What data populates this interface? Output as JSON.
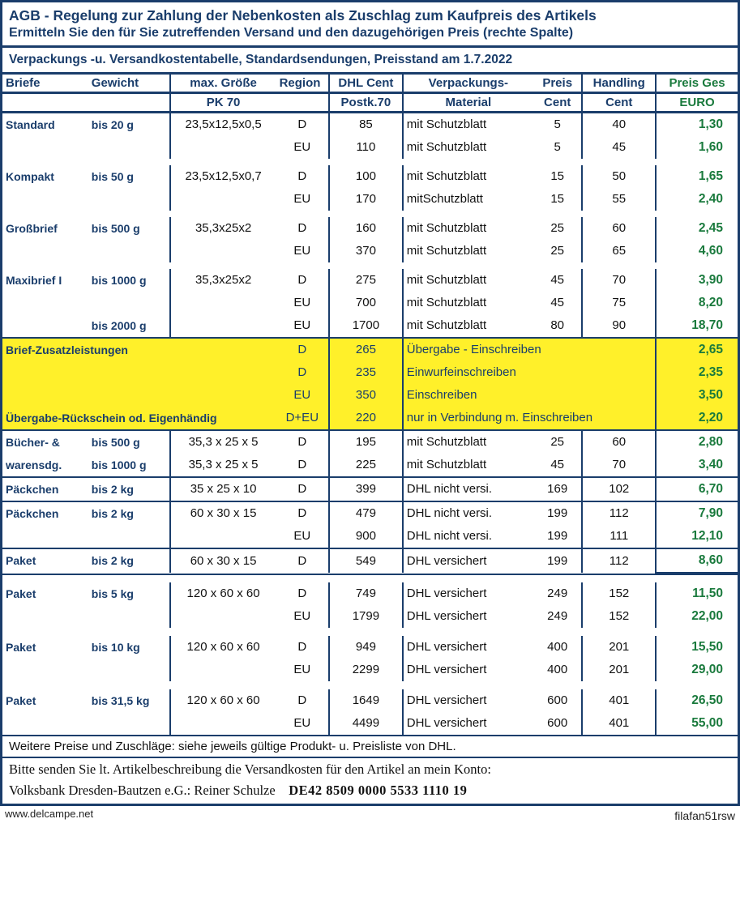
{
  "colors": {
    "frame": "#1a3d6b",
    "heading": "#1a3d6b",
    "price": "#1a7a3d",
    "highlight": "#fff02a",
    "text": "#111111",
    "background": "#ffffff"
  },
  "header": {
    "title": "AGB - Regelung zur Zahlung der Nebenkosten als Zuschlag zum Kaufpreis des Artikels",
    "subtitle": "Ermitteln Sie den für Sie zutreffenden Versand und den dazugehörigen Preis (rechte Spalte)"
  },
  "tableTitle": "Verpackungs -u. Versandkostentabelle, Standardsendungen,   Preisstand am 1.7.2022",
  "columns": {
    "briefe": "Briefe",
    "gewicht": "Gewicht",
    "groesse1": "max. Größe",
    "groesse2": "PK 70",
    "region": "Region",
    "dhl1": "DHL Cent",
    "dhl2": "Postk.70",
    "mat1": "Verpackungs-",
    "mat2": "Material",
    "preis1": "Preis",
    "preis2": "Cent",
    "hand1": "Handling",
    "hand2": "Cent",
    "ges1": "Preis Ges",
    "ges2": "EURO"
  },
  "rows": [
    {
      "cat": "Standard",
      "wt": "bis 20 g",
      "size": "23,5x12,5x0,5",
      "region": "D",
      "dhl": "85",
      "mat": "mit Schutzblatt",
      "preis": "5",
      "hand": "40",
      "ges": "1,30"
    },
    {
      "cat": "",
      "wt": "",
      "size": "",
      "region": "EU",
      "dhl": "110",
      "mat": "mit Schutzblatt",
      "preis": "5",
      "hand": "45",
      "ges": "1,60"
    },
    {
      "cat": "Kompakt",
      "wt": "bis 50 g",
      "size": "23,5x12,5x0,7",
      "region": "D",
      "dhl": "100",
      "mat": "mit Schutzblatt",
      "preis": "15",
      "hand": "50",
      "ges": "1,65"
    },
    {
      "cat": "",
      "wt": "",
      "size": "",
      "region": "EU",
      "dhl": "170",
      "mat": "mitSchutzblatt",
      "preis": "15",
      "hand": "55",
      "ges": "2,40"
    },
    {
      "cat": "Großbrief",
      "wt": "bis 500 g",
      "size": "35,3x25x2",
      "region": "D",
      "dhl": "160",
      "mat": "mit Schutzblatt",
      "preis": "25",
      "hand": "60",
      "ges": "2,45"
    },
    {
      "cat": "",
      "wt": "",
      "size": "",
      "region": "EU",
      "dhl": "370",
      "mat": "mit Schutzblatt",
      "preis": "25",
      "hand": "65",
      "ges": "4,60"
    },
    {
      "cat": "Maxibrief I",
      "wt": "bis 1000 g",
      "size": "35,3x25x2",
      "region": "D",
      "dhl": "275",
      "mat": "mit Schutzblatt",
      "preis": "45",
      "hand": "70",
      "ges": "3,90"
    },
    {
      "cat": "",
      "wt": "",
      "size": "",
      "region": "EU",
      "dhl": "700",
      "mat": "mit Schutzblatt",
      "preis": "45",
      "hand": "75",
      "ges": "8,20"
    },
    {
      "cat": "",
      "wt": "bis 2000 g",
      "size": "",
      "region": "EU",
      "dhl": "1700",
      "mat": "mit Schutzblatt",
      "preis": "80",
      "hand": "90",
      "ges": "18,70"
    }
  ],
  "zusatz": [
    {
      "cat": "Brief-Zusatzleistungen",
      "region": "D",
      "dhl": "265",
      "mat": "Übergabe - Einschreiben",
      "ges": "2,65"
    },
    {
      "cat": "",
      "region": "D",
      "dhl": "235",
      "mat": "Einwurfeinschreiben",
      "ges": "2,35"
    },
    {
      "cat": "",
      "region": "EU",
      "dhl": "350",
      "mat": "   Einschreiben",
      "ges": "3,50"
    },
    {
      "cat": "Übergabe-Rückschein od. Eigenhändig",
      "region": "D+EU",
      "dhl": "220",
      "mat": "nur in Verbindung m. Einschreiben",
      "ges": "2,20"
    }
  ],
  "rows2": [
    {
      "cat": "Bücher- &",
      "wt": "bis 500 g",
      "size": "35,3 x 25 x 5",
      "region": "D",
      "dhl": "195",
      "mat": "mit Schutzblatt",
      "preis": "25",
      "hand": "60",
      "ges": "2,80"
    },
    {
      "cat": "warensdg.",
      "wt": "bis 1000 g",
      "size": "35,3 x 25 x 5",
      "region": "D",
      "dhl": "225",
      "mat": "mit Schutzblatt",
      "preis": "45",
      "hand": "70",
      "ges": "3,40"
    }
  ],
  "paeckchen": [
    {
      "cat": "Päckchen",
      "wt": "bis 2 kg",
      "size": "35 x 25 x 10",
      "region": "D",
      "dhl": "399",
      "mat": "DHL nicht versi.",
      "preis": "169",
      "hand": "102",
      "ges": "6,70"
    }
  ],
  "paeckchen2": [
    {
      "cat": "Päckchen",
      "wt": "bis 2 kg",
      "size": "60 x 30 x 15",
      "region": "D",
      "dhl": "479",
      "mat": "DHL nicht versi.",
      "preis": "199",
      "hand": "112",
      "ges": "7,90"
    },
    {
      "cat": "",
      "wt": "",
      "size": "",
      "region": "EU",
      "dhl": "900",
      "mat": "DHL nicht versi.",
      "preis": "199",
      "hand": "111",
      "ges": "12,10"
    }
  ],
  "paket": [
    {
      "cat": "Paket",
      "wt": "bis 2 kg",
      "size": "60 x 30 x 15",
      "region": "D",
      "dhl": "549",
      "mat": "DHL versichert",
      "preis": "199",
      "hand": "112",
      "ges": "8,60",
      "boxed": true
    },
    {
      "cat": "Paket",
      "wt": "bis 5 kg",
      "size": "120 x 60 x 60",
      "region": "D",
      "dhl": "749",
      "mat": "DHL versichert",
      "preis": "249",
      "hand": "152",
      "ges": "11,50"
    },
    {
      "cat": "",
      "wt": "",
      "size": "",
      "region": "EU",
      "dhl": "1799",
      "mat": "DHL versichert",
      "preis": "249",
      "hand": "152",
      "ges": "22,00"
    },
    {
      "cat": "Paket",
      "wt": "bis 10 kg",
      "size": "120 x 60 x 60",
      "region": "D",
      "dhl": "949",
      "mat": "DHL versichert",
      "preis": "400",
      "hand": "201",
      "ges": "15,50"
    },
    {
      "cat": "",
      "wt": "",
      "size": "",
      "region": "EU",
      "dhl": "2299",
      "mat": "DHL versichert",
      "preis": "400",
      "hand": "201",
      "ges": "29,00"
    },
    {
      "cat": "Paket",
      "wt": "bis 31,5 kg",
      "size": "120 x 60 x 60",
      "region": "D",
      "dhl": "1649",
      "mat": "DHL versichert",
      "preis": "600",
      "hand": "401",
      "ges": "26,50"
    },
    {
      "cat": "",
      "wt": "",
      "size": "",
      "region": "EU",
      "dhl": "4499",
      "mat": "DHL versichert",
      "preis": "600",
      "hand": "401",
      "ges": "55,00"
    }
  ],
  "footnote": "Weitere Preise und Zuschläge: siehe jeweils gültige Produkt- u. Preisliste von DHL.",
  "bank1": "Bitte senden Sie lt. Artikelbeschreibung die Versandkosten für den Artikel an mein Konto:",
  "bank2a": "Volksbank Dresden-Bautzen e.G.: Reiner Schulze",
  "bank2b": "DE42 8509 0000 5533 1110 19",
  "watermark": "filafan51rsw",
  "delcampe": "www.delcampe.net"
}
